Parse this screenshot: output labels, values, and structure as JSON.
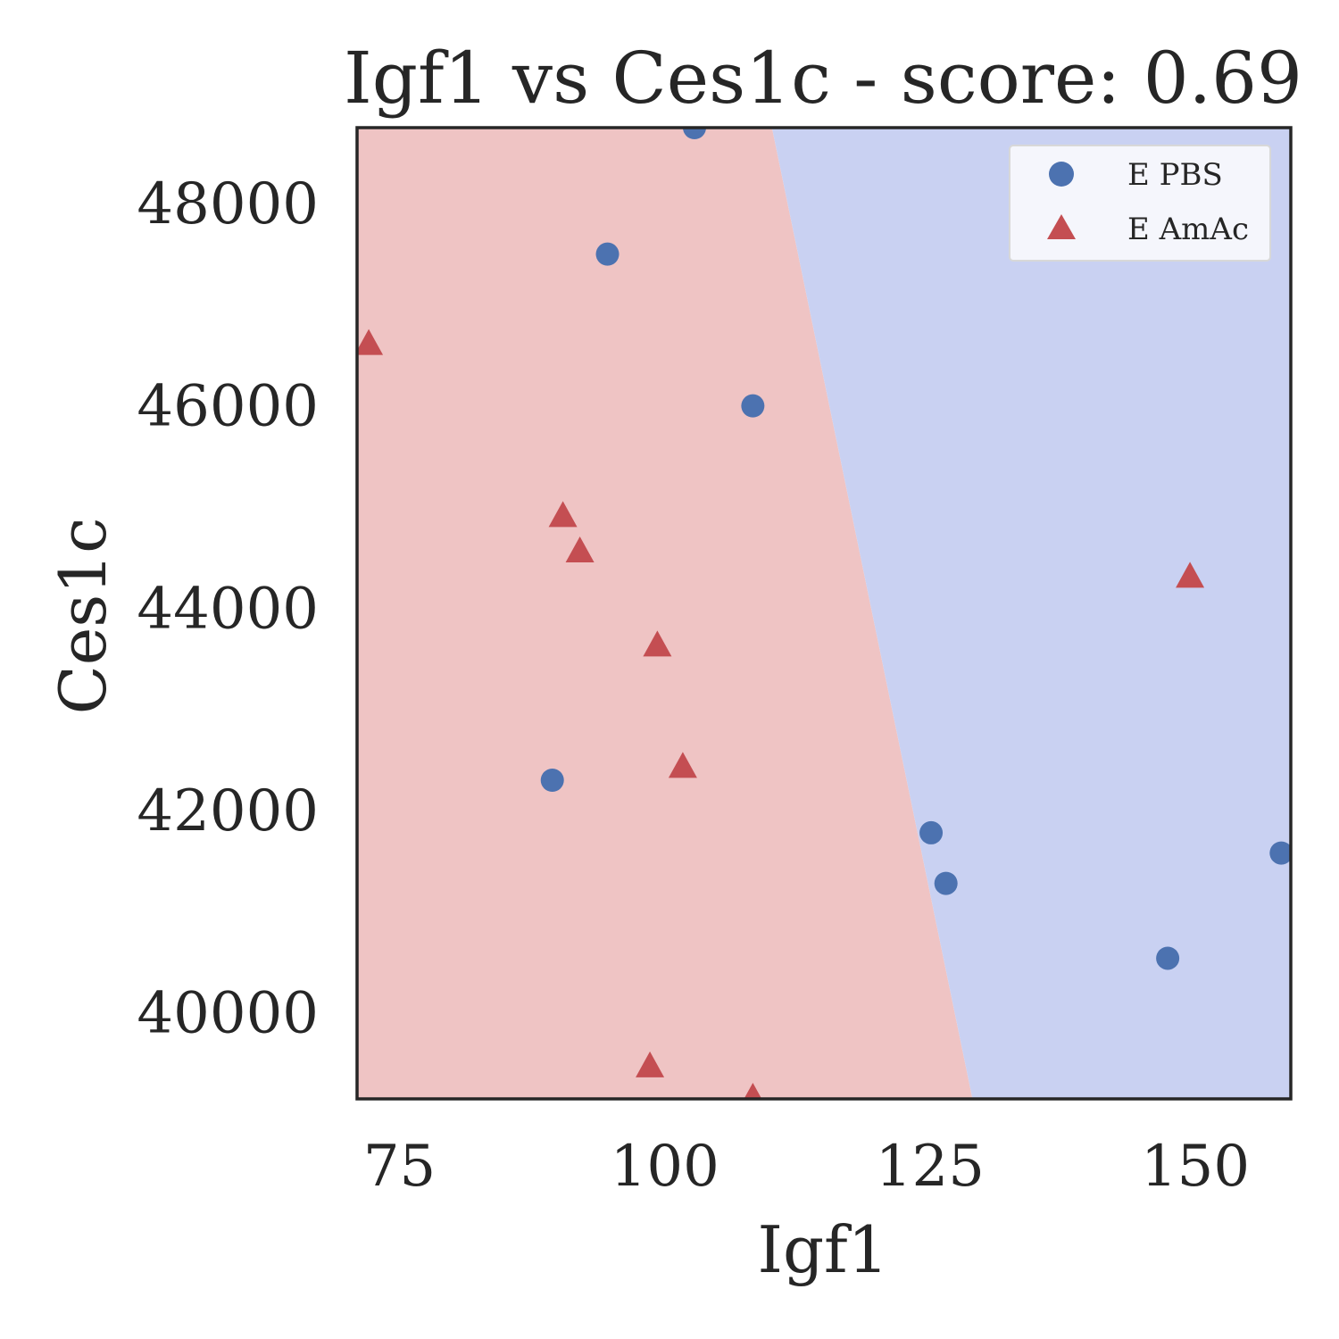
{
  "chart_data": {
    "type": "scatter",
    "title": "Igf1 vs Ces1c - score: 0.69",
    "xlabel": "Igf1",
    "ylabel": "Ces1c",
    "xlim": [
      71,
      159
    ],
    "ylim": [
      39150,
      48750
    ],
    "xticks": [
      75,
      100,
      125,
      150
    ],
    "yticks": [
      40000,
      42000,
      44000,
      46000,
      48000
    ],
    "grid": false,
    "legend_position": "top-right",
    "decision_boundary": {
      "points": [
        [
          110.1,
          48750
        ],
        [
          129.0,
          39150
        ]
      ],
      "left_region_color": "#efc4c4",
      "right_region_color": "#c9d1f2"
    },
    "series": [
      {
        "name": "E PBS",
        "marker": "circle",
        "color": "#4c72b0",
        "points": [
          [
            102.8,
            48750
          ],
          [
            94.6,
            47500
          ],
          [
            108.3,
            46000
          ],
          [
            89.4,
            42300
          ],
          [
            125.1,
            41780
          ],
          [
            126.5,
            41280
          ],
          [
            147.4,
            40540
          ],
          [
            158.1,
            41580
          ]
        ]
      },
      {
        "name": "E AmAc",
        "marker": "triangle",
        "color": "#c44e52",
        "points": [
          [
            72.1,
            46600
          ],
          [
            90.4,
            44900
          ],
          [
            92.0,
            44550
          ],
          [
            99.3,
            43620
          ],
          [
            101.7,
            42420
          ],
          [
            98.6,
            39460
          ],
          [
            108.3,
            39150
          ],
          [
            149.5,
            44300
          ]
        ]
      }
    ]
  }
}
